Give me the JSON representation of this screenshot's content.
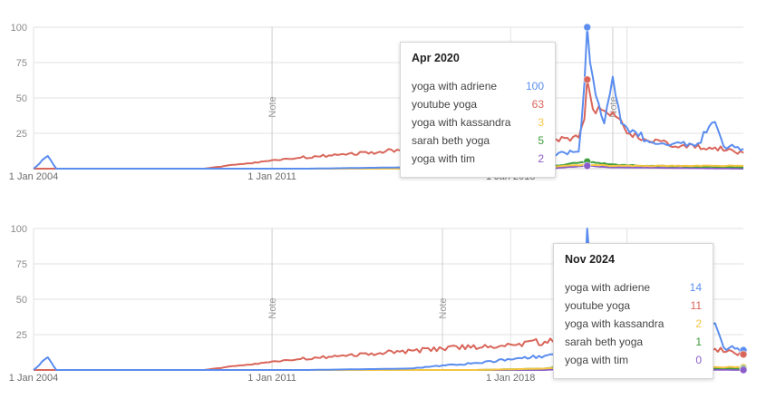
{
  "colors": {
    "yoga with adriene": "#5b8def",
    "youtube yoga": "#d9665b",
    "yoga with kassandra": "#f4c542",
    "sarah beth yoga": "#3c9c3c",
    "yoga with tim": "#8a5cc9",
    "grid": "#e2e2e2",
    "note_line": "#d0d0d0"
  },
  "chart_data": [
    {
      "type": "line",
      "x_ticks": [
        "1 Jan 2004",
        "1 Jan 2011",
        "1 Jan 2018"
      ],
      "y_ticks": [
        "100",
        "75",
        "50",
        "25"
      ],
      "ylim": [
        0,
        100
      ],
      "xlim": [
        "2004-01",
        "2024-11"
      ],
      "grid": true,
      "notes": [
        {
          "label": "Note",
          "date": "2011-01"
        },
        {
          "label": "Note",
          "date": "2021-01"
        }
      ],
      "series": [
        {
          "name": "yoga with adriene",
          "points": [
            [
              "2004-01",
              0
            ],
            [
              "2004-06",
              9
            ],
            [
              "2004-09",
              0
            ],
            [
              "2012-01",
              0
            ],
            [
              "2015-01",
              1
            ],
            [
              "2017-01",
              5
            ],
            [
              "2019-01",
              10
            ],
            [
              "2020-01",
              12
            ],
            [
              "2020-03",
              60
            ],
            [
              "2020-04",
              100
            ],
            [
              "2020-05",
              75
            ],
            [
              "2020-07",
              52
            ],
            [
              "2020-10",
              32
            ],
            [
              "2021-01",
              65
            ],
            [
              "2021-04",
              32
            ],
            [
              "2021-09",
              26
            ],
            [
              "2022-01",
              20
            ],
            [
              "2023-01",
              18
            ],
            [
              "2023-06",
              16
            ],
            [
              "2024-01",
              33
            ],
            [
              "2024-04",
              16
            ],
            [
              "2024-11",
              14
            ]
          ]
        },
        {
          "name": "youtube yoga",
          "points": [
            [
              "2004-01",
              0
            ],
            [
              "2009-01",
              0
            ],
            [
              "2010-01",
              3
            ],
            [
              "2011-01",
              6
            ],
            [
              "2013-01",
              10
            ],
            [
              "2016-01",
              15
            ],
            [
              "2018-01",
              18
            ],
            [
              "2019-01",
              20
            ],
            [
              "2020-01",
              22
            ],
            [
              "2020-03",
              35
            ],
            [
              "2020-04",
              63
            ],
            [
              "2020-06",
              42
            ],
            [
              "2021-01",
              40
            ],
            [
              "2021-06",
              25
            ],
            [
              "2022-01",
              20
            ],
            [
              "2023-01",
              16
            ],
            [
              "2024-01",
              15
            ],
            [
              "2024-11",
              11
            ]
          ]
        },
        {
          "name": "yoga with kassandra",
          "points": [
            [
              "2004-01",
              0
            ],
            [
              "2017-01",
              0
            ],
            [
              "2019-01",
              1
            ],
            [
              "2020-04",
              3
            ],
            [
              "2021-01",
              2
            ],
            [
              "2022-01",
              2
            ],
            [
              "2024-11",
              2
            ]
          ]
        },
        {
          "name": "sarah beth yoga",
          "points": [
            [
              "2004-01",
              0
            ],
            [
              "2017-01",
              0
            ],
            [
              "2019-01",
              1
            ],
            [
              "2020-04",
              5
            ],
            [
              "2021-01",
              3
            ],
            [
              "2022-01",
              2
            ],
            [
              "2024-11",
              1
            ]
          ]
        },
        {
          "name": "yoga with tim",
          "points": [
            [
              "2004-01",
              0
            ],
            [
              "2019-01",
              0
            ],
            [
              "2020-04",
              2
            ],
            [
              "2021-01",
              1
            ],
            [
              "2024-11",
              0
            ]
          ]
        }
      ],
      "tooltip": {
        "title": "Apr 2020",
        "rows": [
          {
            "name": "yoga with adriene",
            "value": "100"
          },
          {
            "name": "youtube yoga",
            "value": "63"
          },
          {
            "name": "yoga with kassandra",
            "value": "3"
          },
          {
            "name": "sarah beth yoga",
            "value": "5"
          },
          {
            "name": "yoga with tim",
            "value": "2"
          }
        ]
      },
      "highlight_date": "2020-04"
    },
    {
      "type": "line",
      "x_ticks": [
        "1 Jan 2004",
        "1 Jan 2011",
        "1 Jan 2018"
      ],
      "y_ticks": [
        "100",
        "75",
        "50",
        "25"
      ],
      "ylim": [
        0,
        100
      ],
      "xlim": [
        "2004-01",
        "2024-11"
      ],
      "grid": true,
      "notes": [
        {
          "label": "Note",
          "date": "2011-01"
        },
        {
          "label": "Note",
          "date": "2016-01"
        }
      ],
      "series": [
        {
          "name": "yoga with adriene",
          "points": [
            [
              "2004-01",
              0
            ],
            [
              "2004-06",
              9
            ],
            [
              "2004-09",
              0
            ],
            [
              "2012-01",
              0
            ],
            [
              "2015-01",
              1
            ],
            [
              "2017-01",
              5
            ],
            [
              "2019-01",
              10
            ],
            [
              "2020-01",
              12
            ],
            [
              "2020-03",
              60
            ],
            [
              "2020-04",
              100
            ],
            [
              "2020-05",
              75
            ],
            [
              "2020-07",
              52
            ],
            [
              "2020-10",
              32
            ],
            [
              "2021-01",
              65
            ],
            [
              "2021-04",
              32
            ],
            [
              "2021-09",
              26
            ],
            [
              "2022-01",
              20
            ],
            [
              "2023-01",
              18
            ],
            [
              "2023-06",
              16
            ],
            [
              "2024-01",
              33
            ],
            [
              "2024-04",
              16
            ],
            [
              "2024-11",
              14
            ]
          ]
        },
        {
          "name": "youtube yoga",
          "points": [
            [
              "2004-01",
              0
            ],
            [
              "2009-01",
              0
            ],
            [
              "2010-01",
              3
            ],
            [
              "2011-01",
              6
            ],
            [
              "2013-01",
              10
            ],
            [
              "2016-01",
              15
            ],
            [
              "2018-01",
              18
            ],
            [
              "2019-01",
              20
            ],
            [
              "2020-01",
              22
            ],
            [
              "2020-03",
              35
            ],
            [
              "2020-04",
              63
            ],
            [
              "2020-06",
              42
            ],
            [
              "2021-01",
              40
            ],
            [
              "2021-06",
              25
            ],
            [
              "2022-01",
              20
            ],
            [
              "2023-01",
              16
            ],
            [
              "2024-01",
              15
            ],
            [
              "2024-11",
              11
            ]
          ]
        },
        {
          "name": "yoga with kassandra",
          "points": [
            [
              "2004-01",
              0
            ],
            [
              "2017-01",
              0
            ],
            [
              "2019-01",
              1
            ],
            [
              "2020-04",
              3
            ],
            [
              "2021-01",
              2
            ],
            [
              "2022-01",
              2
            ],
            [
              "2024-11",
              2
            ]
          ]
        },
        {
          "name": "sarah beth yoga",
          "points": [
            [
              "2004-01",
              0
            ],
            [
              "2017-01",
              0
            ],
            [
              "2019-01",
              1
            ],
            [
              "2020-04",
              5
            ],
            [
              "2021-01",
              3
            ],
            [
              "2022-01",
              2
            ],
            [
              "2024-11",
              1
            ]
          ]
        },
        {
          "name": "yoga with tim",
          "points": [
            [
              "2004-01",
              0
            ],
            [
              "2019-01",
              0
            ],
            [
              "2020-04",
              2
            ],
            [
              "2021-01",
              1
            ],
            [
              "2024-11",
              0
            ]
          ]
        }
      ],
      "tooltip": {
        "title": "Nov 2024",
        "rows": [
          {
            "name": "yoga with adriene",
            "value": "14"
          },
          {
            "name": "youtube yoga",
            "value": "11"
          },
          {
            "name": "yoga with kassandra",
            "value": "2"
          },
          {
            "name": "sarah beth yoga",
            "value": "1"
          },
          {
            "name": "yoga with tim",
            "value": "0"
          }
        ]
      },
      "highlight_date": "2024-11"
    }
  ]
}
